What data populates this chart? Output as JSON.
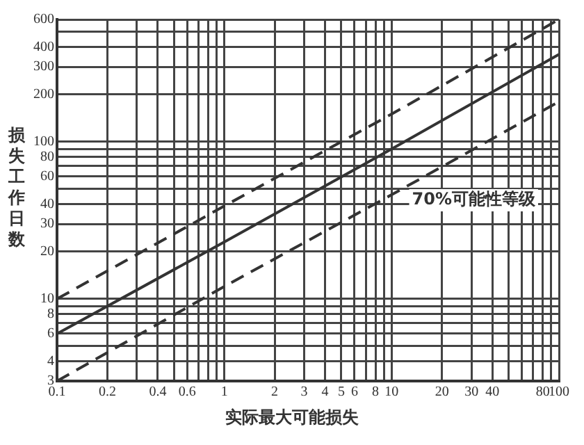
{
  "chart_data": {
    "type": "line",
    "xlabel": "实际最大可能损失",
    "ylabel": "损失工作日数",
    "log": "xy",
    "grid": true,
    "legend": false,
    "marker": "none",
    "xlim": [
      0.1,
      100
    ],
    "ylim": [
      3,
      600
    ],
    "xticks": [
      0.1,
      0.2,
      {
        "value": 0.3,
        "label": null
      },
      0.4,
      {
        "value": 0.5,
        "label": null
      },
      0.6,
      {
        "value": 0.7,
        "label": null
      },
      {
        "value": 0.8,
        "label": null
      },
      {
        "value": 0.9,
        "label": null
      },
      1,
      2,
      3,
      4,
      5,
      6,
      {
        "value": 7,
        "label": null
      },
      8,
      {
        "value": 9,
        "label": null
      },
      10,
      20,
      30,
      40,
      {
        "value": 50,
        "label": null
      },
      {
        "value": 60,
        "label": null
      },
      {
        "value": 70,
        "label": null
      },
      80,
      {
        "value": 90,
        "label": null
      },
      100
    ],
    "yticks": [
      3,
      4,
      {
        "value": 5,
        "label": null
      },
      6,
      {
        "value": 7,
        "label": null
      },
      8,
      {
        "value": 9,
        "label": null
      },
      10,
      20,
      30,
      40,
      {
        "value": 50,
        "label": null
      },
      60,
      {
        "value": 70,
        "label": null
      },
      80,
      {
        "value": 90,
        "label": null
      },
      100,
      200,
      300,
      400,
      {
        "value": 500,
        "label": null
      },
      600
    ],
    "series": [
      {
        "color": "#333333",
        "line_style": "dashed",
        "x": [
          0.1,
          1,
          10,
          100
        ],
        "values": [
          10,
          39,
          150,
          600
        ]
      },
      {
        "color": "#333333",
        "line_style": "solid",
        "x": [
          0.1,
          1,
          10,
          100
        ],
        "values": [
          6,
          23,
          90,
          360
        ]
      },
      {
        "color": "#333333",
        "line_style": "dashed",
        "x": [
          0.1,
          1,
          10,
          100
        ],
        "values": [
          3,
          12,
          46,
          180
        ]
      }
    ],
    "annotations": [
      "70%可能性等级"
    ]
  }
}
